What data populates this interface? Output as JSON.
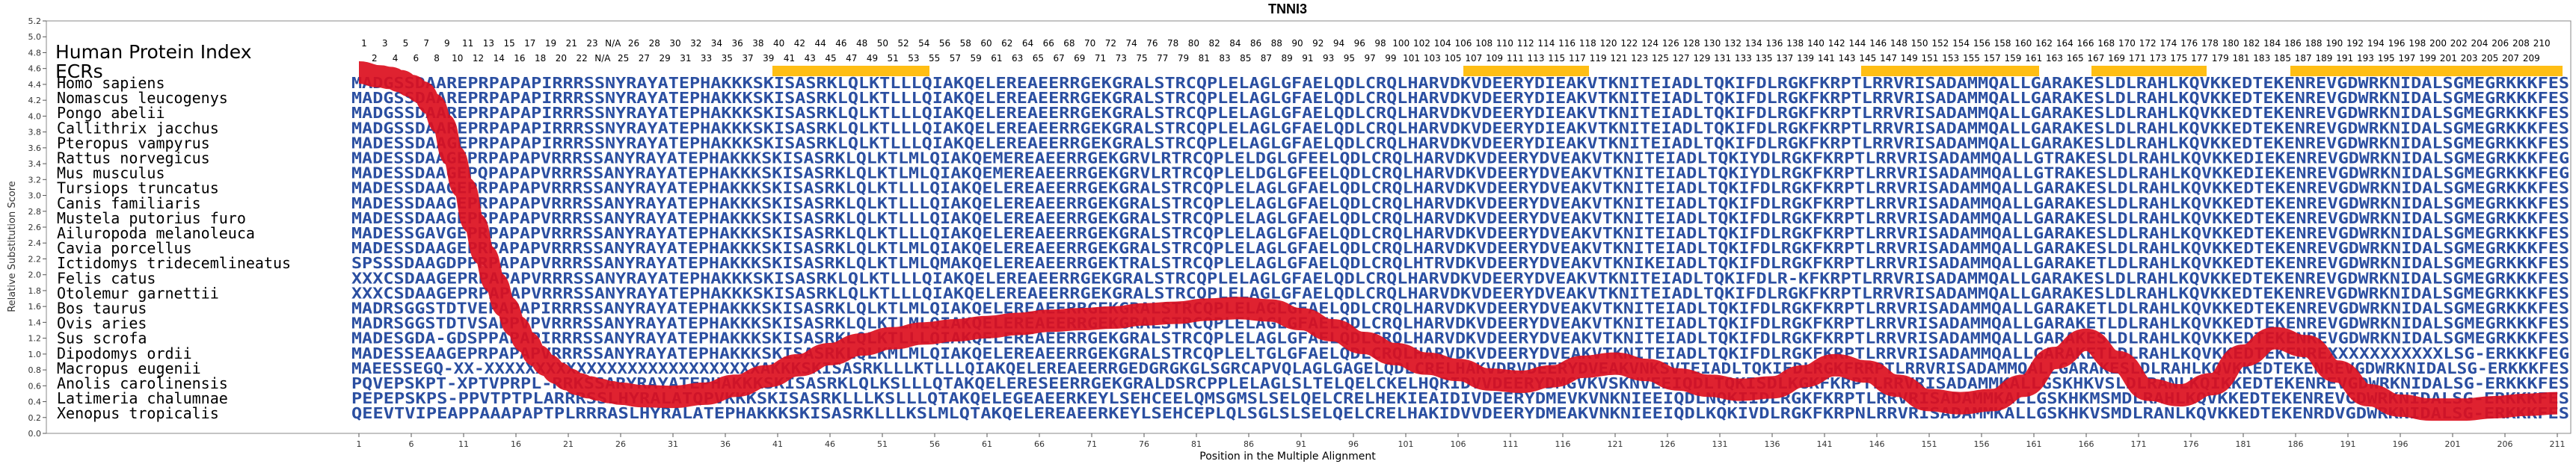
{
  "chart_data": {
    "type": "line",
    "title": "TNNI3",
    "xlabel": "Position in the Multiple Alignment",
    "ylabel": "Relative Substitution Score",
    "ylim": [
      0.0,
      5.2
    ],
    "xlim": [
      1,
      211
    ],
    "x_ticks": [
      1,
      6,
      11,
      16,
      21,
      26,
      31,
      36,
      41,
      46,
      51,
      56,
      61,
      66,
      71,
      76,
      81,
      86,
      91,
      96,
      101,
      106,
      111,
      116,
      121,
      126,
      131,
      136,
      141,
      146,
      151,
      156,
      161,
      166,
      171,
      176,
      181,
      186,
      191,
      196,
      201,
      206,
      211
    ],
    "y_ticks": [
      0.0,
      0.2,
      0.4,
      0.6,
      0.8,
      1.0,
      1.2,
      1.4,
      1.6,
      1.8,
      2.0,
      2.2,
      2.4,
      2.6,
      2.8,
      3.0,
      3.2,
      3.4,
      3.6,
      3.8,
      4.0,
      4.2,
      4.4,
      4.6,
      4.8,
      5.0,
      5.2
    ],
    "grid": false,
    "hpi_label": "Human Protein Index",
    "ecr_label": "ECRs",
    "hpi_row1": [
      "1",
      "3",
      "5",
      "7",
      "9",
      "11",
      "13",
      "15",
      "17",
      "19",
      "21",
      "23",
      "N/A",
      "26",
      "28",
      "30",
      "32",
      "34",
      "36",
      "38",
      "40",
      "42",
      "44",
      "46",
      "48",
      "50",
      "52",
      "54",
      "56",
      "58",
      "60",
      "62",
      "64",
      "66",
      "68",
      "70",
      "72",
      "74",
      "76",
      "78",
      "80",
      "82",
      "84",
      "86",
      "88",
      "90",
      "92",
      "94",
      "96",
      "98",
      "100",
      "102",
      "104",
      "106",
      "108",
      "110",
      "112",
      "114",
      "116",
      "118",
      "120",
      "122",
      "124",
      "126",
      "128",
      "130",
      "132",
      "134",
      "136",
      "138",
      "140",
      "142",
      "144",
      "146",
      "148",
      "150",
      "152",
      "154",
      "156",
      "158",
      "160",
      "162",
      "164",
      "166",
      "168",
      "170",
      "172",
      "174",
      "176",
      "178",
      "180",
      "182",
      "184",
      "186",
      "188",
      "190",
      "192",
      "194",
      "196",
      "198",
      "200",
      "202",
      "204",
      "206",
      "208",
      "210"
    ],
    "hpi_row2": [
      "2",
      "4",
      "6",
      "8",
      "10",
      "12",
      "14",
      "16",
      "18",
      "20",
      "22",
      "N/A",
      "25",
      "27",
      "29",
      "31",
      "33",
      "35",
      "37",
      "39",
      "41",
      "43",
      "45",
      "47",
      "49",
      "51",
      "53",
      "55",
      "57",
      "59",
      "61",
      "63",
      "65",
      "67",
      "69",
      "71",
      "73",
      "75",
      "77",
      "79",
      "81",
      "83",
      "85",
      "87",
      "89",
      "91",
      "93",
      "95",
      "97",
      "99",
      "101",
      "103",
      "105",
      "107",
      "109",
      "111",
      "113",
      "115",
      "117",
      "119",
      "121",
      "123",
      "125",
      "127",
      "129",
      "131",
      "133",
      "135",
      "137",
      "139",
      "141",
      "143",
      "145",
      "147",
      "149",
      "151",
      "153",
      "155",
      "157",
      "159",
      "161",
      "163",
      "165",
      "167",
      "169",
      "171",
      "173",
      "175",
      "177",
      "179",
      "181",
      "183",
      "185",
      "187",
      "189",
      "191",
      "193",
      "195",
      "197",
      "199",
      "201",
      "203",
      "205",
      "207",
      "209"
    ],
    "ecrs": [
      [
        41,
        55
      ],
      [
        107,
        118
      ],
      [
        145,
        161
      ],
      [
        167,
        177
      ],
      [
        186,
        211
      ]
    ],
    "series": [
      {
        "x": [
          1,
          3,
          4,
          5,
          6,
          7,
          8,
          9,
          10,
          11,
          12,
          13,
          14,
          15,
          16,
          17,
          18,
          19,
          20,
          21,
          22,
          23,
          24,
          25,
          26,
          28,
          31,
          34,
          37,
          40,
          43,
          46,
          49,
          52,
          55,
          58,
          61,
          64,
          67,
          70,
          73,
          76,
          79,
          82,
          85,
          88,
          91,
          94,
          97,
          100,
          103,
          106,
          109,
          112,
          115,
          118,
          121,
          124,
          127,
          130,
          133,
          136,
          139,
          142,
          145,
          148,
          151,
          154,
          157,
          160,
          163,
          166,
          169,
          172,
          175,
          178,
          181,
          184,
          187,
          190,
          193,
          196,
          199,
          202,
          205,
          208,
          211
        ],
        "values": [
          4.55,
          4.5,
          4.48,
          4.44,
          4.38,
          4.3,
          4.15,
          3.9,
          3.5,
          3.1,
          2.65,
          2.25,
          1.9,
          1.6,
          1.35,
          1.15,
          0.98,
          0.86,
          0.76,
          0.68,
          0.62,
          0.58,
          0.55,
          0.52,
          0.5,
          0.47,
          0.46,
          0.5,
          0.6,
          0.72,
          0.86,
          1.0,
          1.12,
          1.2,
          1.26,
          1.3,
          1.34,
          1.38,
          1.42,
          1.44,
          1.46,
          1.5,
          1.52,
          1.56,
          1.58,
          1.55,
          1.44,
          1.3,
          1.14,
          1.0,
          0.88,
          0.8,
          0.68,
          0.65,
          0.72,
          0.84,
          0.88,
          0.8,
          0.68,
          0.6,
          0.55,
          0.58,
          0.72,
          0.86,
          0.78,
          0.6,
          0.42,
          0.38,
          0.42,
          0.6,
          0.95,
          1.18,
          0.9,
          0.55,
          0.48,
          0.62,
          0.98,
          1.2,
          1.1,
          0.78,
          0.48,
          0.35,
          0.3,
          0.3,
          0.33,
          0.36,
          0.38
        ]
      }
    ],
    "sequences": [
      {
        "name": "Homo sapiens",
        "seq": "MADGSSDAAREPRPAPAPIRRRSSNYRAYATEPHAKKKSKISASRKLQLKTLLLQIAKQELEREAEERRGEKGRALSTRCQPLELAGLGFAELQDLCRQLHARVDKVDEERYDIEAKVTKNITEIADLTQKIFDLRGKFKRPTLRRVRISADAMMQALLGARAKESLDLRAHLKQVKKEDTEKENREVGDWRKNIDALSGMEGRKKKFES"
      },
      {
        "name": "Nomascus leucogenys",
        "seq": "MADGSSDAAREPRPAPAPIRRRSSNYRAYATEPHAKKKSKISASRKLQLKTLLLQIAKQELEREAEERRGEKGRALSTRCQPLELAGLGFAELQDLCRQLHARVDKVDEERYDIEAKVTKNITEIADLTQKIFDLRGKFKRPTLRRVRISADAMMQALLGARAKESLDLRAHLKQVKKEDTEKENREVGDWRKNIDALSGMEGRKKKFES"
      },
      {
        "name": "Pongo abelii",
        "seq": "MADGSSDAAREPRPAPAPIRRRSSNYRAYATEPHAKKKSKISASRKLQLKTLLLQIAKQELEREAEERRGEKGRALSTRCQPLELAGLGFAELQDLCRQLHARVDKVDEERYDIEAKVTKNITEIADLTQKIFDLRGKFKRPTLRRVRISADAMMQALLGARAKESLDLRAHLKQVKKEDTEKENREVGDWRKNIDALSGMEGRKKKFES"
      },
      {
        "name": "Callithrix jacchus",
        "seq": "MADGSSDAAREPRPAPAPIRRRSSNYRAYATEPHAKKKSKISASRKLQLKTLLLQIAKQELEREAEERRGEKGRALSTRCQPLELAGLGFAELQDLCRQLHARVDKVDEERYDIEAKVTKNITEIADLTQKIFDLRGKFKRPTLRRVRISADAMMQALLGARAKESLDLRAHLKQVKKEDTEKENREVGDWRKNIDALSGMEGRKKKFES"
      },
      {
        "name": "Pteropus vampyrus",
        "seq": "MADESSDAAGEPRPAPAPIRRRSSNYRAYATEPHAKKKSKISASRKLQLKTLLLQIAKQELEREAEERRGEKGRALSTRCQPLELAGLGFAELQDLCRQLHARVDKVDEERYDIEAKVTKNITEIADLTQKIFDLRGKFKRPTLRRVRISADAMMQALLGARAKESLDLRAHLKQVKKEDTEKENREVGDWRKNIDALSGMEGRKKKFES"
      },
      {
        "name": "Rattus norvegicus",
        "seq": "MADESSDAAGEPRPAPAPVRRRSSANYRAYATEPHAKKKSKISASRKLQLKTLMLQIAKQEMEREAEERRGEKGRVLRTRCQPLELDGLGFEELQDLCRQLHARVDKVDEERYDVEAKVTKNITEIADLTQKIYDLRGKFKRPTLRRVRISADAMMQALLGTRAKESLDLRAHLKQVKKEDIEKENREVGDWRKNIDALSGMEGRKKKFEG"
      },
      {
        "name": "Mus musculus",
        "seq": "MADESSDAAGEPQPAPAPVRRRSSANYRAYATEPHAKKKSKISASRKLQLKTLMLQIAKQEMEREAEERRGEKGRVLRTRCQPLELDGLGFEELQDLCRQLHARVDKVDEERYDVEAKVTKNITEIADLTQKIYDLRGKFKRPTLRRVRISADAMMQALLGTRAKESLDLRAHLKQVKKEDIEKENREVGDWRKNIDALSGMEGRKKKFEG"
      },
      {
        "name": "Tursiops truncatus",
        "seq": "MADESSDAAGEPRPAPAPVRRRSSANYRAYATEPHAKKKSKISASRKLQLKTLLLQIAKQELEREAEERRGEKGRALSTRCQPLELAGLGFAELQDLCRQLHARVDKVDEERYDVEAKVTKNITEIADLTQKIFDLRGKFKRPTLRRVRISADAMMQALLGARAKESLDLRAHLKQVKKEDTEKENREVGDWRKNIDALSGMEGRKKKFES"
      },
      {
        "name": "Canis familiaris",
        "seq": "MADESSDAAGEPRPAPAPVRRRSSANYRAYATEPHAKKKSKISASRKLQLKTLLLQIAKQELEREAEERRGEKGRALSTRCQPLELAGLGFAELQDLCRQLHARVDKVDEERYDVEAKVTKNITEIADLTQKIFDLRGKFKRPTLRRVRISADAMMQALLGARAKESLDLRAHLKQVKKEDTEKENREVGDWRKNIDALSGMEGRKKKFES"
      },
      {
        "name": "Mustela putorius furo",
        "seq": "MADESSDAAGEPRPAPAPVRRRSSANYRAYATEPHAKKKSKISASRKLQLKTLLLQIAKQELEREAEERRGEKGRALSTRCQPLELAGLGFAELQDLCRQLHARVDKVDEERYDVEAKVTKNITEIADLTQKIFDLRGKFKRPTLRRVRISADAMMQALLGARAKESLDLRAHLKQVKKEDTEKENREVGDWRKNIDALSGMEGRKKKFES"
      },
      {
        "name": "Ailuropoda melanoleuca",
        "seq": "MADESSGAVGEPRPAPAPVRRRSSANYRAYATEPHAKKKSKISASRKLQLKTLLLQIAKQELEREAEERRGEKGRALSTRCQPLELAGLGFAELQDLCRQLHARVDKVDEERYDVEAKVTKNITEIADLTQKIFDLRGKFKRPTLRRVRISADAMMQALLGARAKESLDLRAHLKQVKKEDTEKENREVGDWRKNIDALSGMEGRKKKFES"
      },
      {
        "name": "Cavia porcellus",
        "seq": "MADESSDAAGEPRPAPAPVRRRSSANYRAYATEPHAKKKSKISASRKLQLKTLMLQIAKQELEREAEERRGEKGRALSTRCQPLELAGLGFAELQDLCRQLHARVDKVDEERYDVEAKVTKNITEIADLTQKIFDLRGKFKRPTLRRVRISADAMMQALLGARAKESLDLRAHLKQVKKEDTEKENREVGDWRKNIDALSGMEGRKKKFES"
      },
      {
        "name": "Ictidomys tridecemlineatus",
        "seq": "SPSSSDAAGDPPRPAPAPVRRRSSANYRAYATEPHAKKKSKISASRKLQLKTLMLQMAKQELEREAEERRGEKTRALSTRCQPLELAGLGFAELQDLCRQLHTRVDKVDEERYDVEAKVTKNIKEIADLTQKIFDLRGKFKRPTLRRVRISADAMMQALLGARAKETLDLRAHLKQVKKEDTEKENREVGDWRKNIDALSGMEGRKKKFES"
      },
      {
        "name": "Felis catus",
        "seq": "XXXCSDAAGEPRPAPAPVRRRSSANYRAYATEPHAKKKSKISASRKLQLKTLLLQIAKQELEREAEERRGEKGRALSTRCQPLELAGLGFAELQDLCRQLHARVDKVDEERYDVEAKVTKNITEIADLTQKIFDLR-KFKRPTLRRVRISADAMMQALLGARAKESLDLRAHLKQVKKEDTEKENREVGDWRKNIDALSGMEGRKKKFES"
      },
      {
        "name": "Otolemur garnettii",
        "seq": "XXXCSDAAGEPRPAPAPVRRRSSANYRAYATEPHAKKKSKISASRKLQLKTLLLQIAKQELEREAEERRGEKGRALSTRCQPLELAGLGFAELQDLCRQLHARVDKVDEERYDVEAKVTKNITEIADLTQKIFDLRGKFKRPTLRRVRISADAMMQALLGARAKESLDLRAHLKQVKKEDTEKENREVGDWRKNIDALSGMEGRKKKFES"
      },
      {
        "name": "Bos taurus",
        "seq": "MADRSGGSTDTVEPAPAPIRRRSSANYRAYATEPHAKKKSKISASRKLQLKTLMLQIAKQELEREAEERRGEKGRALSTRCQPLELAGLGFAELQDLCRQLHARVDKVDEERYDVEAKVTKNITEIADLTQKIFDLRGKFKRPTLRRVRISADAMMQALLGARAKETLDLRAHLKQVKKEDTEKENREVGDWRKNIDALSGMEGRKKKFES"
      },
      {
        "name": "Ovis aries",
        "seq": "MADRSGGSTDTVSAPPVPVRRRSSANYRAYATEPHAKKKSKISASRKLQLKTLMLQIAKQELEREAEERRGEKGRALSTRCQPLELAGLGFAELQDLCRQLHARVDKVDEERYDVEAKVTKNITEIADLTQKIFDLRGKFKRPTLRRVRISADAMMQALLGARAKETLDLRAHLKQVKKEDTEKENREVGDWRKNIDALSGMEGRKKKFES"
      },
      {
        "name": "Sus scrofa",
        "seq": "MADESGDA-GDSPPAPAPIRRRSSANYRAYATEPHAKKKSKISASRKLQLKTLLLQIAKQELEREAEERRGEKGRALSTRCQPLELAGLGFAELQDLCRQLHARVDKVDEERYDVEAKVTKNITEIADLTQKIFDLRGKFKRPTLRRVRISADAMMQALLGARAKESLDLRAHLKQVKKEDTEKENREVGDWRKNIDALSGMEGRKKKFES"
      },
      {
        "name": "Dipodomys ordii",
        "seq": "MADESSEAAGEPRPAPAPVRRRSSANYRAYATEPHAKKKSKISASRKLQLKMLMLQIAKQELEREAEERRGEKGRALSTRCQPLELTGLGFAELQDLCRQLHARVDKVDEERYDVEAKVTKNITEIADLTQKIFDLRGKFKRPTLRRVRISADAMMQALLGARAKETLDLRAHLKQVKKEDTEKENREXXXXXXXXXXXLSG-ERKKKFEG"
      },
      {
        "name": "Macropus eugenii",
        "seq": "MAEESSEGQ-XX-XXXXXXXXXXXXXXXXXXXXXXXXXXXAKKKSKISASRKLLLKTLLLQIAKQELEREAEERRGEDGRGKGLSGRCAPVQLAGLGAGELQDLCRELHAKVDRVDEERYDVEAKVNKSVTEIADLTQKIFDLRGKFRRPTLRRVRISADAMMQALLGARAKESLDLRAHLKQVKKEDTEKENREVGDWRKNIDALSG-ERKKKFES"
      },
      {
        "name": "Anolis carolinensis",
        "seq": "PQVEPSKPT-XPTVPRPL-RRKSSARYRAYATEPHAKKKSKISASRKLQLKSLLLQTAKQELERESEERRGEKGRALDSRCPPLELAGLSLTELQELCKELHQRIDVVDEERYDMGVKVSKNVEEIQDLTQKISDLKGKFKRPTLRRVRISADAMMKALLGSKHKVSLDLRANLKQIKKEDTEKENREVGDWRKNIDALSG-ERKKKFES"
      },
      {
        "name": "Latimeria chalumnae",
        "seq": "PEPEPSKPS-PPVTPTPLARRRSSLHYRALATQPVKKKSKISASRKLLLKSLLLQTAKQELEGEAEERKEYLSEHCEELQMSGMSLSELQELCRELHEKIEAIDIVDEERYDMEVKVNKNIEEIQDLNQKIIDLRGKFKRPTLRRVRISADAMMKALLGSKHKMSMDLRAHLKQVKKEDTEKENREVGDWRKNIDALSG-ERKKKFES"
      },
      {
        "name": "Xenopus tropicalis",
        "seq": "QEEVTVIPEAPPAAAPAPTPLRRRASLHYRALATEPHAKKKSKISASRKLLLKSLMLQTAKQELEREAEERKEYLSEHCEPLQLSGLSLSELQELCRELHAKIDVVDEERYDMEAKVNKNIEEIQDLKQKIVDLRGKFKRPNLRRVRISADAMMKALLGSKHKVSMDLRANLKQVKKEDTEKENRDVGDWRKNIDALSG-ERKKKFES"
      }
    ],
    "colors": {
      "curve": "#dc0f1e",
      "ecr": "#ffbe14",
      "residue_dark": "#2b4fa1",
      "residue_light": "#8fb0d8",
      "text": "#000000"
    }
  }
}
